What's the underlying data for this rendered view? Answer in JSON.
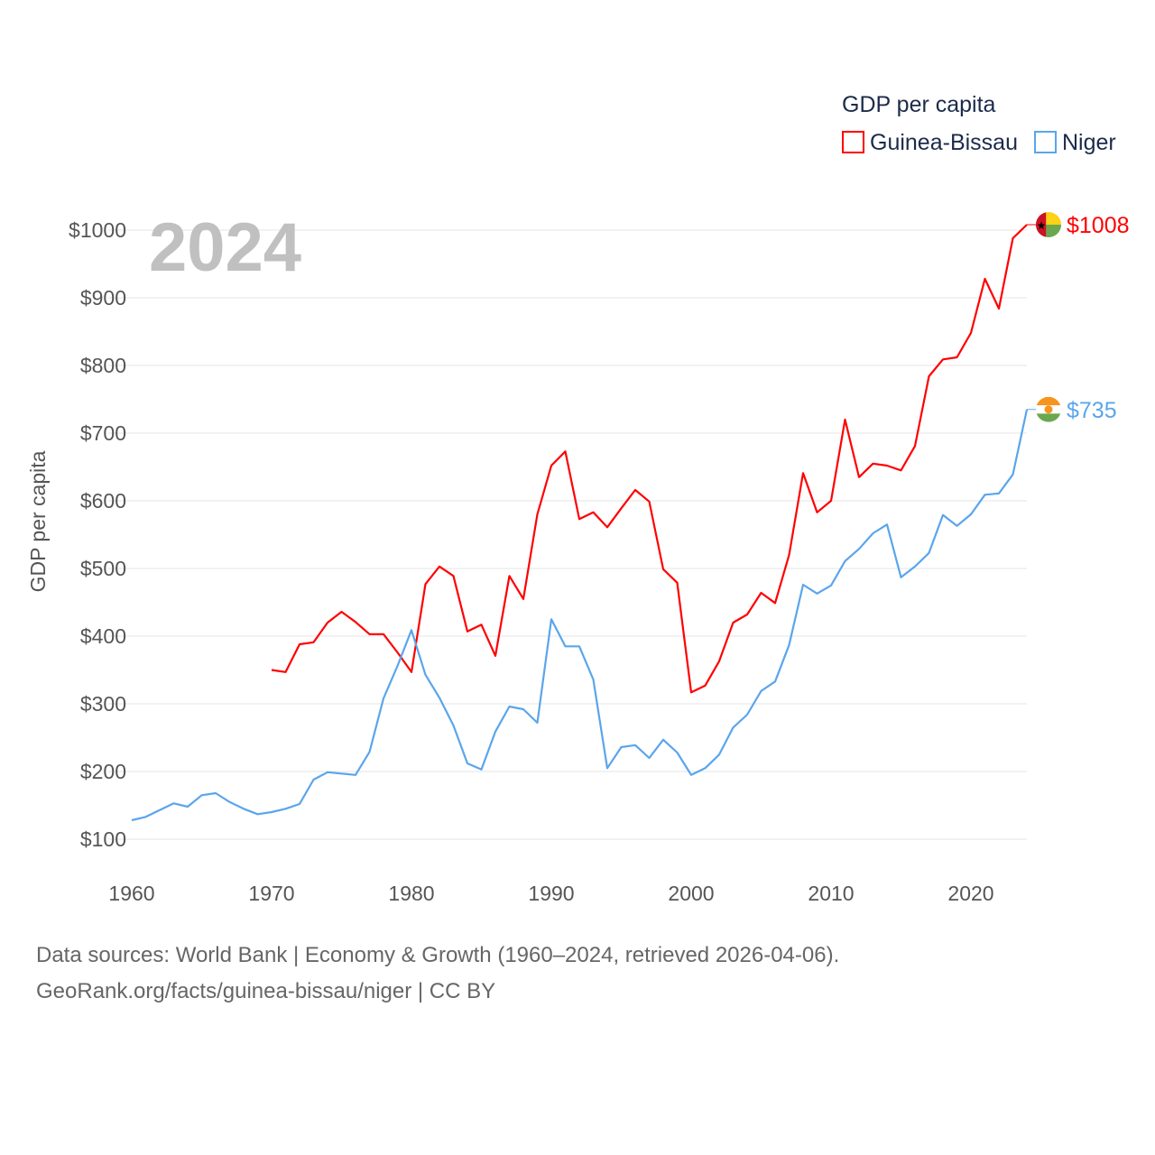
{
  "chart_data": {
    "type": "line",
    "year_label": "2024",
    "ylabel": "GDP per capita",
    "legend_title": "GDP per capita",
    "legend_placement": "top-right",
    "xlim": [
      1960,
      2024
    ],
    "ylim": [
      100,
      1000
    ],
    "x_ticks": [
      1960,
      1970,
      1980,
      1990,
      2000,
      2010,
      2020
    ],
    "x_tick_labels": [
      "1960",
      "1970",
      "1980",
      "1990",
      "2000",
      "2010",
      "2020"
    ],
    "y_ticks": [
      100,
      200,
      300,
      400,
      500,
      600,
      700,
      800,
      900,
      1000
    ],
    "y_tick_labels": [
      "$100",
      "$200",
      "$300",
      "$400",
      "$500",
      "$600",
      "$700",
      "$800",
      "$900",
      "$1000"
    ],
    "grid": true,
    "series": [
      {
        "name": "Guinea-Bissau",
        "color": "#ff0000",
        "start_year": 1970,
        "end_label": "$1008",
        "values": [
          350,
          347,
          388,
          391,
          420,
          436,
          421,
          403,
          403,
          376,
          347,
          477,
          503,
          489,
          407,
          417,
          371,
          489,
          455,
          580,
          652,
          673,
          573,
          583,
          561,
          589,
          616,
          599,
          499,
          479,
          317,
          327,
          363,
          420,
          432,
          464,
          449,
          520,
          641,
          583,
          600,
          720,
          635,
          655,
          652,
          645,
          681,
          784,
          809,
          812,
          848,
          928,
          884,
          988,
          1008
        ]
      },
      {
        "name": "Niger",
        "color": "#5aa5ec",
        "start_year": 1960,
        "end_label": "$735",
        "values": [
          128,
          133,
          143,
          153,
          148,
          165,
          168,
          155,
          145,
          137,
          140,
          145,
          152,
          188,
          199,
          197,
          195,
          229,
          308,
          356,
          409,
          343,
          309,
          268,
          212,
          203,
          259,
          296,
          292,
          272,
          425,
          385,
          385,
          336,
          205,
          236,
          239,
          220,
          247,
          228,
          195,
          205,
          225,
          265,
          284,
          319,
          333,
          387,
          476,
          463,
          475,
          511,
          529,
          552,
          565,
          487,
          503,
          523,
          579,
          563,
          580,
          609,
          611,
          639,
          735
        ]
      }
    ]
  },
  "footer": {
    "line1": "Data sources: World Bank | Economy & Growth (1960–2024, retrieved 2026-04-06).",
    "line2": "GeoRank.org/facts/guinea-bissau/niger | CC BY"
  }
}
